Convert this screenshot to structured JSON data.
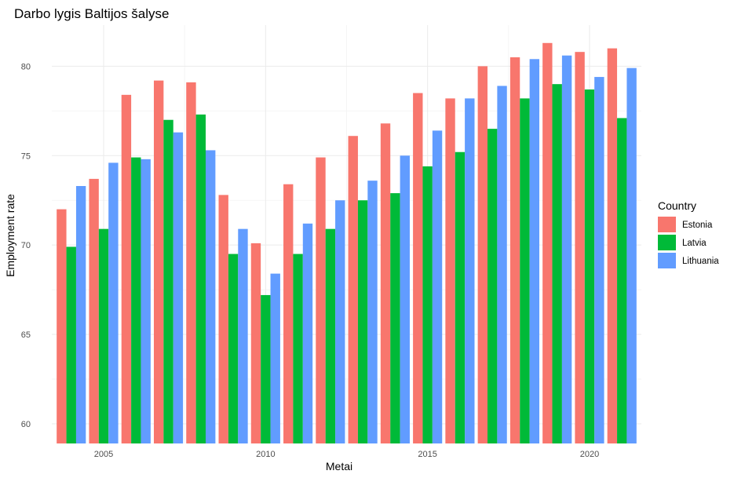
{
  "chart_data": {
    "type": "bar",
    "title": "Darbo lygis Baltijos šalyse",
    "xlabel": "Metai",
    "ylabel": "Employment rate",
    "x": [
      2004,
      2005,
      2006,
      2007,
      2008,
      2009,
      2010,
      2011,
      2012,
      2013,
      2014,
      2015,
      2016,
      2017,
      2018,
      2019,
      2020,
      2021
    ],
    "xticks": [
      "2005",
      "2010",
      "2015",
      "2020"
    ],
    "yticks": [
      "60",
      "65",
      "70",
      "75",
      "80"
    ],
    "ylim": [
      58.9,
      82.3
    ],
    "legend": {
      "title": "Country",
      "position": "right"
    },
    "grid": true,
    "series": [
      {
        "name": "Estonia",
        "color": "#F8766D",
        "values": [
          72.0,
          73.7,
          78.4,
          79.2,
          79.1,
          72.8,
          70.1,
          73.4,
          74.9,
          76.1,
          76.8,
          78.5,
          78.2,
          80.0,
          80.5,
          81.3,
          80.8,
          81.0
        ]
      },
      {
        "name": "Latvia",
        "color": "#00BA38",
        "values": [
          69.9,
          70.9,
          74.9,
          77.0,
          77.3,
          69.5,
          67.2,
          69.5,
          70.9,
          72.5,
          72.9,
          74.4,
          75.2,
          76.5,
          78.2,
          79.0,
          78.7,
          77.1
        ]
      },
      {
        "name": "Lithuania",
        "color": "#619CFF",
        "values": [
          73.3,
          74.6,
          74.8,
          76.3,
          75.3,
          70.9,
          68.4,
          71.2,
          72.5,
          73.6,
          75.0,
          76.4,
          78.2,
          78.9,
          80.4,
          80.6,
          79.4,
          79.9
        ]
      }
    ]
  }
}
